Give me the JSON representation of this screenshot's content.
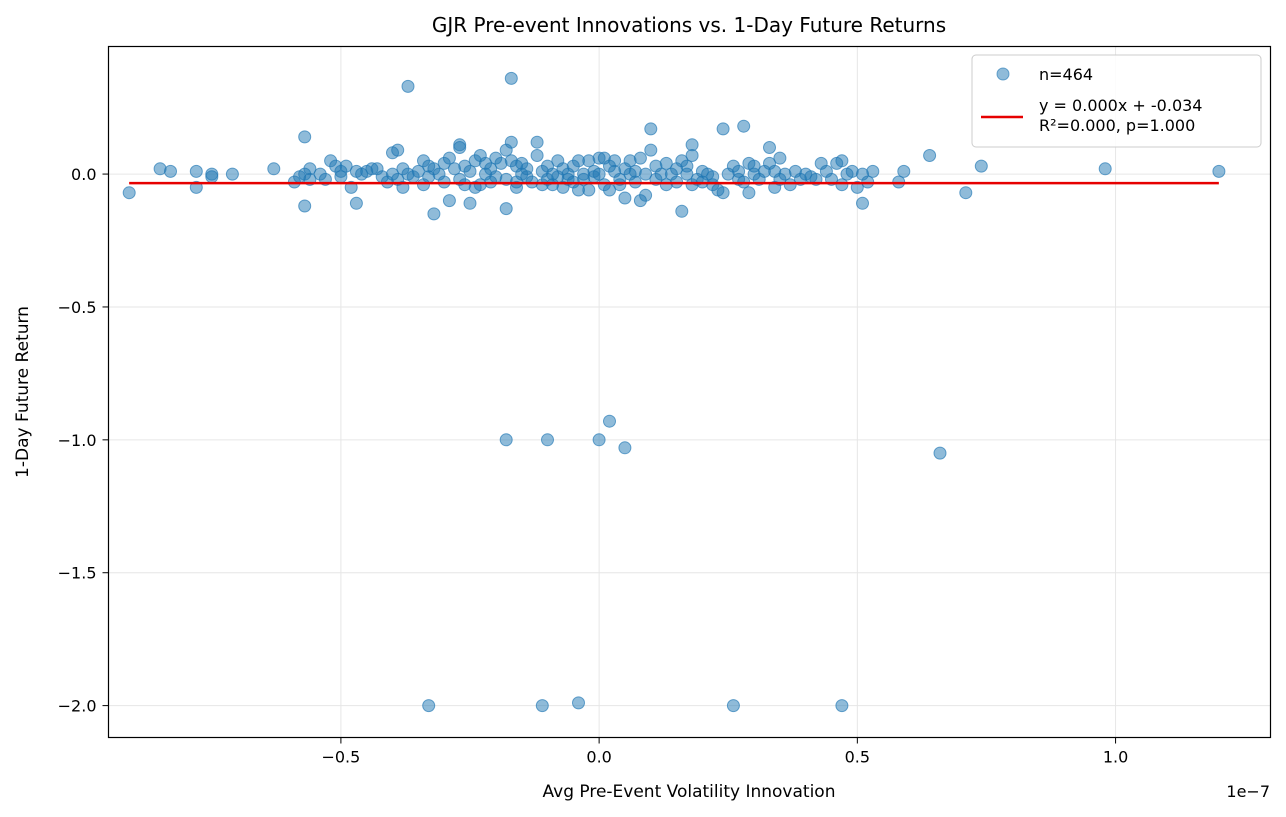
{
  "chart_data": {
    "type": "scatter",
    "title": "GJR Pre-event Innovations vs. 1-Day Future Returns",
    "xlabel": "Avg Pre-Event Volatility Innovation",
    "ylabel": "1-Day Future Return",
    "x_offset_label": "1e−7",
    "xlim": [
      -0.95,
      1.3
    ],
    "ylim": [
      -2.12,
      0.48
    ],
    "x_ticks": [
      {
        "value": -0.5,
        "label": "−0.5"
      },
      {
        "value": 0.0,
        "label": "0.0"
      },
      {
        "value": 0.5,
        "label": "0.5"
      },
      {
        "value": 1.0,
        "label": "1.0"
      }
    ],
    "y_ticks": [
      {
        "value": 0.0,
        "label": "0.0"
      },
      {
        "value": -0.5,
        "label": "−0.5"
      },
      {
        "value": -1.0,
        "label": "−1.0"
      },
      {
        "value": -1.5,
        "label": "−1.5"
      },
      {
        "value": -2.0,
        "label": "−2.0"
      }
    ],
    "grid": true,
    "legend_position": "top-right",
    "series": [
      {
        "name": "n=464",
        "kind": "scatter",
        "color": "#1f77b4",
        "points": [
          [
            -0.91,
            -0.07
          ],
          [
            -0.85,
            0.02
          ],
          [
            -0.83,
            0.01
          ],
          [
            -0.78,
            0.01
          ],
          [
            -0.78,
            -0.05
          ],
          [
            -0.75,
            0.0
          ],
          [
            -0.75,
            -0.01
          ],
          [
            -0.71,
            0.0
          ],
          [
            -0.63,
            0.02
          ],
          [
            -0.59,
            -0.03
          ],
          [
            -0.58,
            -0.01
          ],
          [
            -0.57,
            0.14
          ],
          [
            -0.57,
            -0.12
          ],
          [
            -0.57,
            0.0
          ],
          [
            -0.56,
            0.02
          ],
          [
            -0.56,
            -0.02
          ],
          [
            -0.54,
            0.0
          ],
          [
            -0.53,
            -0.02
          ],
          [
            -0.52,
            0.05
          ],
          [
            -0.51,
            0.03
          ],
          [
            -0.5,
            0.01
          ],
          [
            -0.5,
            -0.01
          ],
          [
            -0.49,
            0.03
          ],
          [
            -0.48,
            -0.05
          ],
          [
            -0.47,
            -0.11
          ],
          [
            -0.47,
            0.01
          ],
          [
            -0.46,
            0.0
          ],
          [
            -0.45,
            0.01
          ],
          [
            -0.44,
            0.02
          ],
          [
            -0.43,
            0.02
          ],
          [
            -0.42,
            -0.01
          ],
          [
            -0.41,
            -0.03
          ],
          [
            -0.4,
            0.0
          ],
          [
            -0.4,
            0.08
          ],
          [
            -0.39,
            0.09
          ],
          [
            -0.39,
            -0.02
          ],
          [
            -0.38,
            0.02
          ],
          [
            -0.38,
            -0.05
          ],
          [
            -0.37,
            0.0
          ],
          [
            -0.37,
            0.33
          ],
          [
            -0.36,
            -0.01
          ],
          [
            -0.35,
            0.01
          ],
          [
            -0.34,
            0.05
          ],
          [
            -0.34,
            -0.04
          ],
          [
            -0.33,
            0.03
          ],
          [
            -0.33,
            -0.01
          ],
          [
            -0.33,
            -2.0
          ],
          [
            -0.32,
            -0.15
          ],
          [
            -0.32,
            0.02
          ],
          [
            -0.31,
            0.0
          ],
          [
            -0.3,
            0.04
          ],
          [
            -0.3,
            -0.03
          ],
          [
            -0.29,
            0.06
          ],
          [
            -0.29,
            -0.1
          ],
          [
            -0.28,
            0.02
          ],
          [
            -0.27,
            0.11
          ],
          [
            -0.27,
            0.1
          ],
          [
            -0.27,
            -0.02
          ],
          [
            -0.26,
            0.03
          ],
          [
            -0.26,
            -0.04
          ],
          [
            -0.25,
            -0.11
          ],
          [
            -0.25,
            0.01
          ],
          [
            -0.24,
            0.05
          ],
          [
            -0.24,
            -0.05
          ],
          [
            -0.23,
            0.07
          ],
          [
            -0.23,
            -0.04
          ],
          [
            -0.22,
            0.04
          ],
          [
            -0.22,
            0.0
          ],
          [
            -0.21,
            -0.03
          ],
          [
            -0.21,
            0.02
          ],
          [
            -0.2,
            0.06
          ],
          [
            -0.2,
            -0.01
          ],
          [
            -0.19,
            0.04
          ],
          [
            -0.18,
            0.09
          ],
          [
            -0.18,
            -0.13
          ],
          [
            -0.18,
            -0.02
          ],
          [
            -0.18,
            -1.0
          ],
          [
            -0.17,
            0.12
          ],
          [
            -0.17,
            0.05
          ],
          [
            -0.17,
            0.36
          ],
          [
            -0.16,
            -0.05
          ],
          [
            -0.16,
            0.03
          ],
          [
            -0.16,
            -0.03
          ],
          [
            -0.15,
            0.0
          ],
          [
            -0.15,
            0.04
          ],
          [
            -0.14,
            -0.01
          ],
          [
            -0.14,
            0.02
          ],
          [
            -0.13,
            -0.03
          ],
          [
            -0.12,
            0.07
          ],
          [
            -0.12,
            0.12
          ],
          [
            -0.11,
            -0.04
          ],
          [
            -0.11,
            0.01
          ],
          [
            -0.11,
            -2.0
          ],
          [
            -0.1,
            -1.0
          ],
          [
            -0.1,
            -0.02
          ],
          [
            -0.1,
            0.03
          ],
          [
            -0.09,
            0.0
          ],
          [
            -0.09,
            -0.04
          ],
          [
            -0.08,
            0.05
          ],
          [
            -0.08,
            -0.01
          ],
          [
            -0.07,
            0.02
          ],
          [
            -0.07,
            -0.05
          ],
          [
            -0.06,
            0.0
          ],
          [
            -0.06,
            -0.02
          ],
          [
            -0.05,
            0.03
          ],
          [
            -0.05,
            -0.03
          ],
          [
            -0.04,
            -0.06
          ],
          [
            -0.04,
            0.05
          ],
          [
            -0.04,
            -1.99
          ],
          [
            -0.03,
            0.0
          ],
          [
            -0.03,
            -0.02
          ],
          [
            -0.02,
            0.05
          ],
          [
            -0.02,
            -0.06
          ],
          [
            -0.01,
            0.01
          ],
          [
            -0.01,
            -0.01
          ],
          [
            0.0,
            -1.0
          ],
          [
            0.0,
            0.06
          ],
          [
            0.0,
            0.0
          ],
          [
            0.01,
            -0.04
          ],
          [
            0.01,
            0.06
          ],
          [
            0.02,
            0.03
          ],
          [
            0.02,
            -0.06
          ],
          [
            0.02,
            -0.93
          ],
          [
            0.03,
            0.05
          ],
          [
            0.03,
            0.01
          ],
          [
            0.04,
            -0.02
          ],
          [
            0.04,
            -0.04
          ],
          [
            0.05,
            -1.03
          ],
          [
            0.05,
            0.02
          ],
          [
            0.05,
            -0.09
          ],
          [
            0.06,
            0.0
          ],
          [
            0.06,
            0.05
          ],
          [
            0.07,
            -0.03
          ],
          [
            0.07,
            0.01
          ],
          [
            0.08,
            -0.1
          ],
          [
            0.08,
            0.06
          ],
          [
            0.09,
            -0.08
          ],
          [
            0.09,
            0.0
          ],
          [
            0.1,
            0.09
          ],
          [
            0.1,
            0.17
          ],
          [
            0.11,
            -0.02
          ],
          [
            0.11,
            0.03
          ],
          [
            0.12,
            0.0
          ],
          [
            0.13,
            -0.04
          ],
          [
            0.13,
            0.04
          ],
          [
            0.14,
            0.0
          ],
          [
            0.15,
            0.02
          ],
          [
            0.15,
            -0.03
          ],
          [
            0.16,
            0.05
          ],
          [
            0.16,
            -0.14
          ],
          [
            0.17,
            0.0
          ],
          [
            0.17,
            0.03
          ],
          [
            0.18,
            -0.04
          ],
          [
            0.18,
            0.11
          ],
          [
            0.18,
            0.07
          ],
          [
            0.19,
            -0.02
          ],
          [
            0.2,
            0.01
          ],
          [
            0.2,
            -0.03
          ],
          [
            0.21,
            0.0
          ],
          [
            0.22,
            -0.01
          ],
          [
            0.22,
            -0.04
          ],
          [
            0.23,
            -0.06
          ],
          [
            0.24,
            0.17
          ],
          [
            0.24,
            -0.07
          ],
          [
            0.25,
            0.0
          ],
          [
            0.26,
            0.03
          ],
          [
            0.26,
            -2.0
          ],
          [
            0.27,
            -0.02
          ],
          [
            0.27,
            0.01
          ],
          [
            0.28,
            0.18
          ],
          [
            0.28,
            -0.03
          ],
          [
            0.29,
            0.04
          ],
          [
            0.29,
            -0.07
          ],
          [
            0.3,
            0.0
          ],
          [
            0.3,
            0.03
          ],
          [
            0.31,
            -0.02
          ],
          [
            0.32,
            0.01
          ],
          [
            0.33,
            0.1
          ],
          [
            0.33,
            0.04
          ],
          [
            0.34,
            -0.05
          ],
          [
            0.34,
            0.01
          ],
          [
            0.35,
            0.06
          ],
          [
            0.35,
            -0.02
          ],
          [
            0.36,
            0.0
          ],
          [
            0.37,
            -0.04
          ],
          [
            0.38,
            0.01
          ],
          [
            0.39,
            -0.02
          ],
          [
            0.4,
            0.0
          ],
          [
            0.41,
            -0.01
          ],
          [
            0.42,
            -0.02
          ],
          [
            0.43,
            0.04
          ],
          [
            0.44,
            0.01
          ],
          [
            0.45,
            -0.02
          ],
          [
            0.46,
            0.04
          ],
          [
            0.47,
            -0.04
          ],
          [
            0.47,
            0.05
          ],
          [
            0.47,
            -2.0
          ],
          [
            0.48,
            0.0
          ],
          [
            0.49,
            0.01
          ],
          [
            0.5,
            -0.05
          ],
          [
            0.51,
            -0.11
          ],
          [
            0.51,
            0.0
          ],
          [
            0.52,
            -0.03
          ],
          [
            0.53,
            0.01
          ],
          [
            0.58,
            -0.03
          ],
          [
            0.59,
            0.01
          ],
          [
            0.64,
            0.07
          ],
          [
            0.66,
            -1.05
          ],
          [
            0.71,
            -0.07
          ],
          [
            0.74,
            0.03
          ],
          [
            0.98,
            0.02
          ],
          [
            1.2,
            0.01
          ]
        ]
      },
      {
        "name": "y = 0.000x + -0.034\nR²=0.000, p=1.000",
        "kind": "line",
        "color": "#e60000",
        "points": [
          [
            -0.91,
            -0.034
          ],
          [
            1.2,
            -0.034
          ]
        ]
      }
    ]
  }
}
